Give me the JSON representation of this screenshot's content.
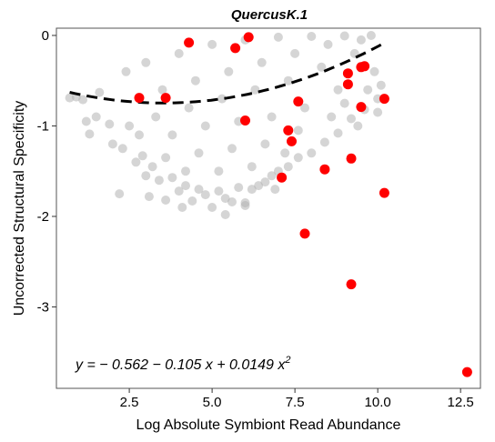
{
  "chart_data": {
    "type": "scatter",
    "title": "QuercusK.1",
    "xlabel": "Log Absolute Symbiont Read Abundance",
    "ylabel": "Uncorrected Structural Specificity",
    "xlim": [
      0.3,
      13.1
    ],
    "ylim": [
      -3.9,
      0.08
    ],
    "x_ticks": [
      2.5,
      5.0,
      7.5,
      10.0,
      12.5
    ],
    "x_tick_labels": [
      "2.5",
      "5.0",
      "7.5",
      "10.0",
      "12.5"
    ],
    "y_ticks": [
      0,
      -1,
      -2,
      -3
    ],
    "y_tick_labels": [
      "0",
      "-1",
      "-2",
      "-3"
    ],
    "grid": false,
    "legend": "none",
    "colors": {
      "background_points": "#b3b3b3",
      "highlight_points": "#ff0000",
      "fit_line": "#000000",
      "frame": "#555555"
    },
    "fit": {
      "type": "quadratic",
      "coefficients": [
        -0.562,
        -0.105,
        0.0149
      ],
      "x_range": [
        0.7,
        10.2
      ],
      "line_style": "dashed",
      "equation_text": "y = − 0.562 − 0.105 x + 0.0149 x",
      "equation_superscript": "2"
    },
    "series": [
      {
        "kind": "background",
        "points": [
          [
            0.7,
            -0.69
          ],
          [
            0.9,
            -0.68
          ],
          [
            1.1,
            -0.71
          ],
          [
            1.2,
            -0.95
          ],
          [
            1.3,
            -1.09
          ],
          [
            1.5,
            -0.9
          ],
          [
            1.6,
            -0.63
          ],
          [
            1.9,
            -0.98
          ],
          [
            2.0,
            -1.2
          ],
          [
            2.3,
            -1.25
          ],
          [
            2.5,
            -1.0
          ],
          [
            2.7,
            -1.4
          ],
          [
            2.9,
            -1.33
          ],
          [
            3.0,
            -1.55
          ],
          [
            3.2,
            -1.45
          ],
          [
            3.4,
            -1.6
          ],
          [
            3.6,
            -1.82
          ],
          [
            3.8,
            -1.57
          ],
          [
            4.0,
            -1.72
          ],
          [
            4.2,
            -1.66
          ],
          [
            4.4,
            -1.83
          ],
          [
            4.6,
            -1.7
          ],
          [
            4.8,
            -1.76
          ],
          [
            5.0,
            -1.9
          ],
          [
            5.2,
            -1.72
          ],
          [
            5.4,
            -1.8
          ],
          [
            5.6,
            -1.84
          ],
          [
            5.8,
            -1.68
          ],
          [
            6.0,
            -1.85
          ],
          [
            6.2,
            -1.7
          ],
          [
            6.4,
            -1.66
          ],
          [
            6.6,
            -1.62
          ],
          [
            6.8,
            -1.55
          ],
          [
            7.0,
            -1.5
          ],
          [
            7.3,
            -1.45
          ],
          [
            7.6,
            -1.35
          ],
          [
            8.0,
            -1.3
          ],
          [
            8.4,
            -1.18
          ],
          [
            8.8,
            -1.08
          ],
          [
            9.2,
            -0.92
          ],
          [
            9.6,
            -0.82
          ],
          [
            10.0,
            -0.7
          ],
          [
            2.2,
            -1.75
          ],
          [
            3.1,
            -1.78
          ],
          [
            4.1,
            -1.9
          ],
          [
            5.4,
            -1.98
          ],
          [
            6.0,
            -1.88
          ],
          [
            6.9,
            -1.7
          ],
          [
            2.4,
            -0.4
          ],
          [
            3.0,
            -0.3
          ],
          [
            4.0,
            -0.2
          ],
          [
            5.0,
            -0.1
          ],
          [
            6.0,
            -0.05
          ],
          [
            7.0,
            -0.02
          ],
          [
            8.0,
            -0.01
          ],
          [
            9.0,
            -0.005
          ],
          [
            9.8,
            0.0
          ],
          [
            3.5,
            -0.6
          ],
          [
            4.5,
            -0.5
          ],
          [
            5.5,
            -0.4
          ],
          [
            6.5,
            -0.3
          ],
          [
            7.5,
            -0.2
          ],
          [
            8.5,
            -0.1
          ],
          [
            9.5,
            -0.05
          ],
          [
            3.3,
            -0.9
          ],
          [
            4.3,
            -0.8
          ],
          [
            5.3,
            -0.7
          ],
          [
            6.3,
            -0.6
          ],
          [
            7.3,
            -0.5
          ],
          [
            8.3,
            -0.35
          ],
          [
            9.3,
            -0.2
          ],
          [
            2.8,
            -1.1
          ],
          [
            3.8,
            -1.1
          ],
          [
            4.8,
            -1.0
          ],
          [
            5.8,
            -0.95
          ],
          [
            6.8,
            -0.9
          ],
          [
            7.8,
            -0.8
          ],
          [
            8.8,
            -0.6
          ],
          [
            3.6,
            -1.35
          ],
          [
            4.6,
            -1.3
          ],
          [
            5.6,
            -1.25
          ],
          [
            6.6,
            -1.2
          ],
          [
            7.6,
            -1.05
          ],
          [
            8.6,
            -0.9
          ],
          [
            4.2,
            -1.5
          ],
          [
            5.2,
            -1.5
          ],
          [
            6.2,
            -1.45
          ],
          [
            7.2,
            -1.3
          ],
          [
            9.9,
            -0.4
          ],
          [
            10.1,
            -0.55
          ],
          [
            9.7,
            -0.6
          ],
          [
            10.0,
            -0.85
          ],
          [
            9.4,
            -1.0
          ],
          [
            9.0,
            -0.75
          ]
        ]
      },
      {
        "kind": "highlight",
        "points": [
          [
            2.8,
            -0.69
          ],
          [
            3.6,
            -0.69
          ],
          [
            4.3,
            -0.08
          ],
          [
            5.7,
            -0.14
          ],
          [
            6.1,
            -0.02
          ],
          [
            6.0,
            -0.94
          ],
          [
            7.1,
            -1.57
          ],
          [
            7.3,
            -1.05
          ],
          [
            7.4,
            -1.17
          ],
          [
            7.6,
            -0.73
          ],
          [
            7.8,
            -2.19
          ],
          [
            8.4,
            -1.48
          ],
          [
            9.1,
            -0.42
          ],
          [
            9.1,
            -0.54
          ],
          [
            9.2,
            -1.36
          ],
          [
            9.2,
            -2.75
          ],
          [
            9.5,
            -0.79
          ],
          [
            9.5,
            -0.35
          ],
          [
            9.6,
            -0.34
          ],
          [
            10.2,
            -0.7
          ],
          [
            10.2,
            -1.74
          ],
          [
            12.7,
            -3.72
          ]
        ]
      }
    ]
  }
}
